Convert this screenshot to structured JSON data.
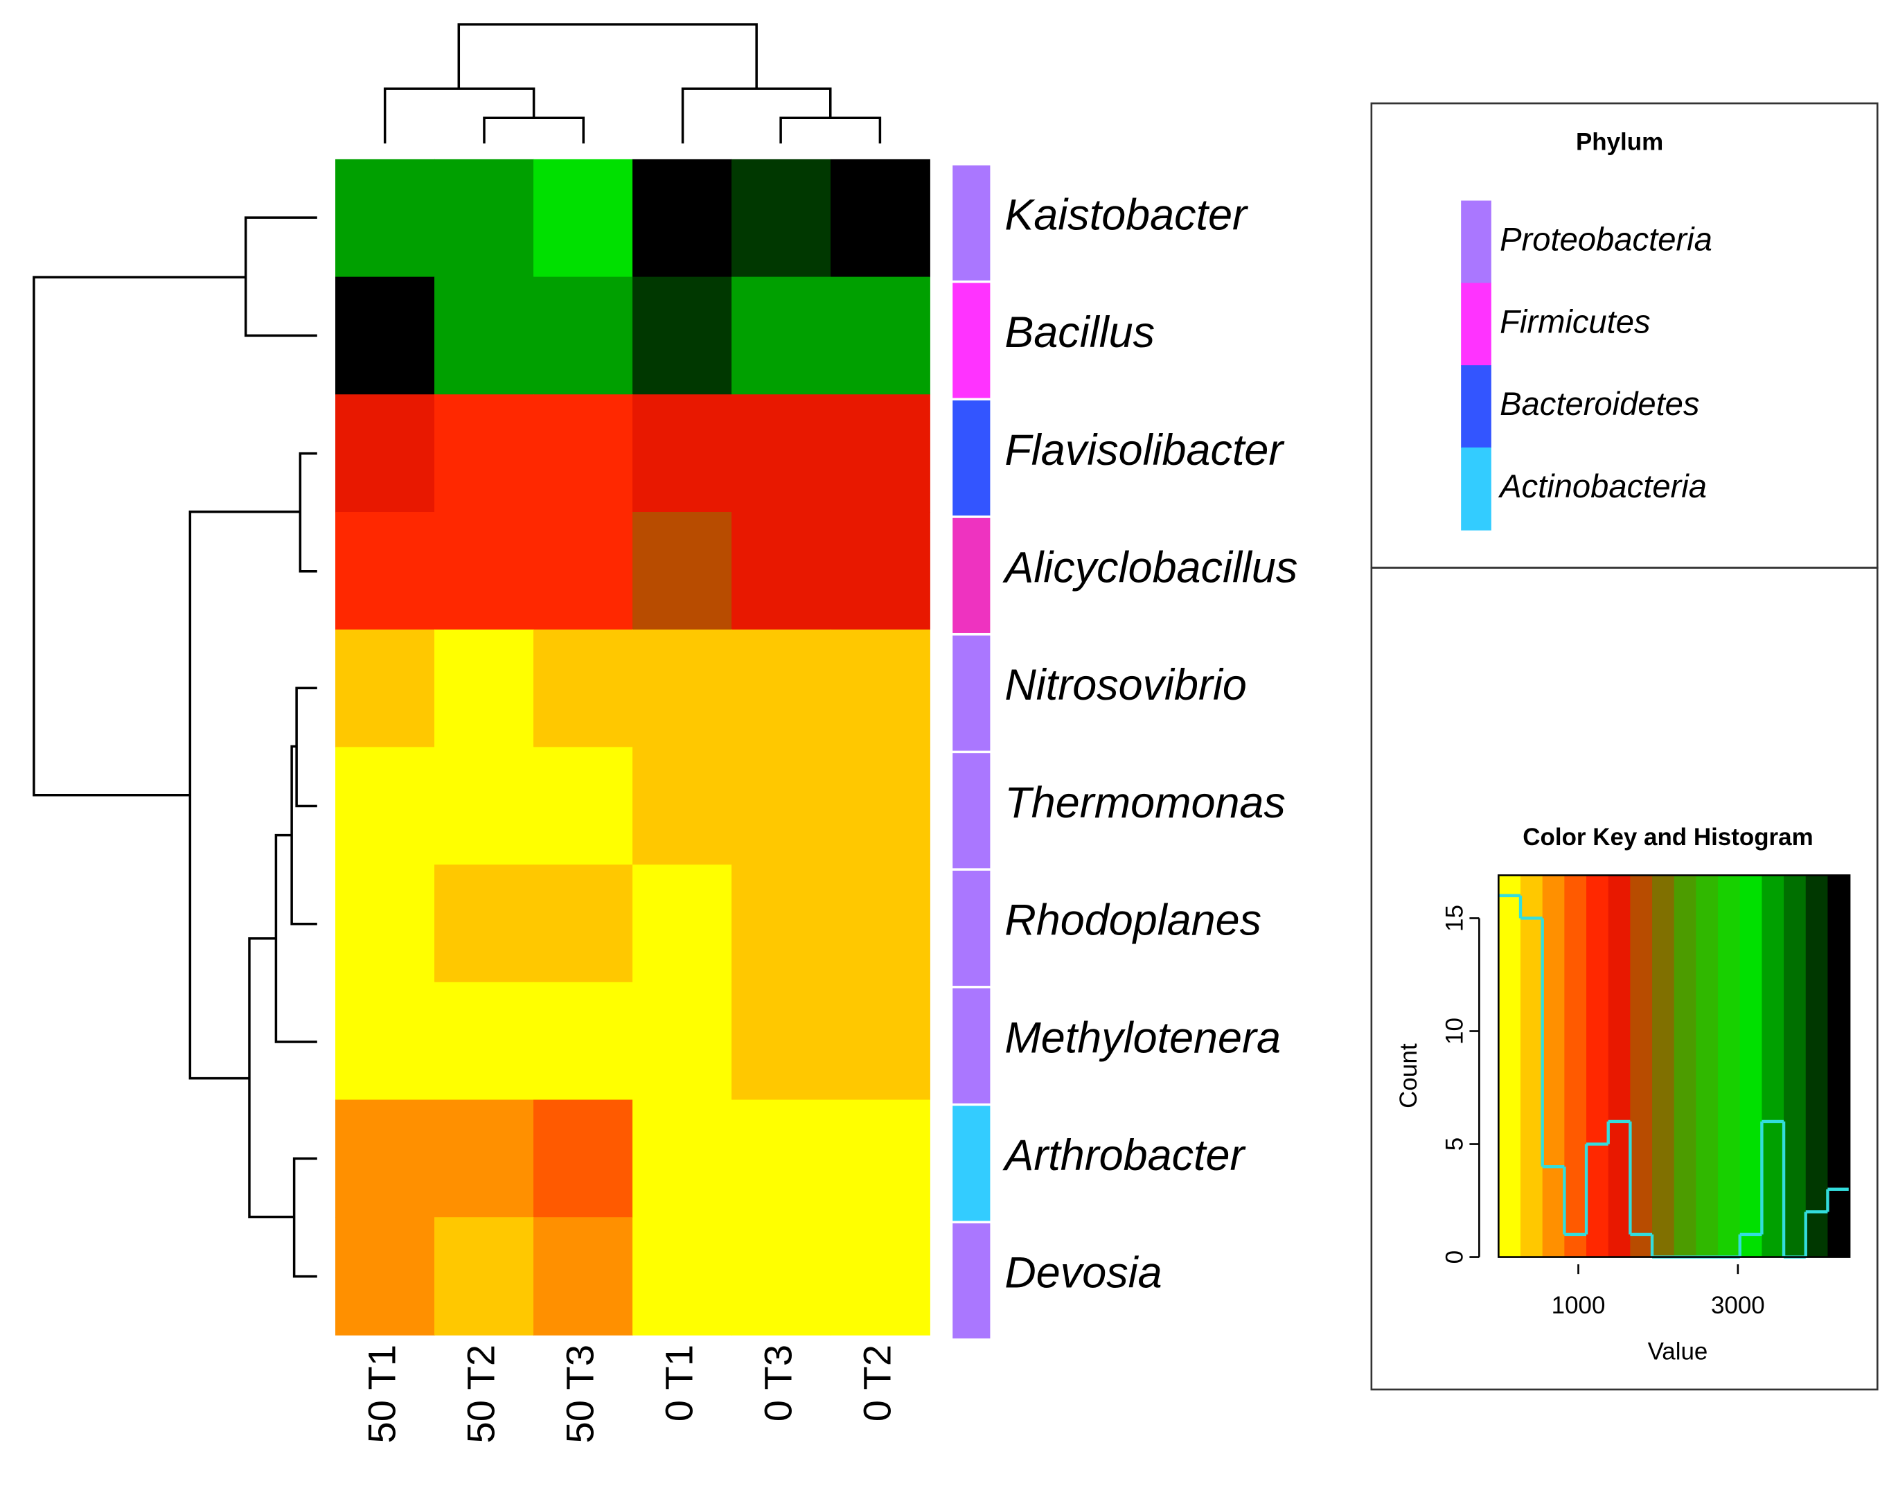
{
  "chart_data": {
    "type": "heatmap",
    "columns": [
      "50 T1",
      "50 T2",
      "50 T3",
      "0 T1",
      "0 T3",
      "0 T2"
    ],
    "rows": [
      "Kaistobacter",
      "Bacillus",
      "Flavisolibacter",
      "Alicyclobacillus",
      "Nitrosovibrio",
      "Thermomonas",
      "Rhodoplanes",
      "Methylotenera",
      "Arthrobacter",
      "Devosia"
    ],
    "values": [
      [
        3440,
        3440,
        3165,
        4265,
        3990,
        4265
      ],
      [
        4265,
        3440,
        3440,
        3990,
        3440,
        3440
      ],
      [
        1515,
        1240,
        1240,
        1515,
        1515,
        1515
      ],
      [
        1240,
        1240,
        1240,
        1790,
        1515,
        1515
      ],
      [
        415,
        140,
        415,
        415,
        415,
        415
      ],
      [
        140,
        140,
        140,
        415,
        415,
        415
      ],
      [
        140,
        415,
        415,
        140,
        415,
        415
      ],
      [
        140,
        140,
        140,
        140,
        415,
        415
      ],
      [
        690,
        690,
        965,
        140,
        140,
        140
      ],
      [
        690,
        415,
        690,
        140,
        140,
        140
      ]
    ],
    "row_colors": [
      "#aa77ff",
      "#ff33ff",
      "#3355ff",
      "#ee33c0",
      "#aa77ff",
      "#aa77ff",
      "#aa77ff",
      "#aa77ff",
      "#33ccff",
      "#aa77ff"
    ],
    "legend": {
      "title": "Phylum",
      "items": [
        {
          "name": "Proteobacteria",
          "color": "#aa77ff"
        },
        {
          "name": "Firmicutes",
          "color": "#ff33ff"
        },
        {
          "name": "Bacteroidetes",
          "color": "#3355ff"
        },
        {
          "name": "Actinobacteria",
          "color": "#33ccff"
        }
      ]
    },
    "color_key": {
      "title": "Color Key and Histogram",
      "xlabel": "Value",
      "ylabel": "Count",
      "breaks": [
        0,
        275,
        550,
        825,
        1100,
        1375,
        1650,
        1925,
        2200,
        2475,
        2750,
        3025,
        3300,
        3575,
        3850,
        4125,
        4400
      ],
      "colors": [
        "#ffff00",
        "#ffc800",
        "#ff9000",
        "#ff5a00",
        "#ff2800",
        "#e81800",
        "#b84c00",
        "#807000",
        "#4c9c00",
        "#30b800",
        "#18d000",
        "#00e000",
        "#00a000",
        "#007000",
        "#003800",
        "#000000"
      ],
      "counts": [
        16,
        15,
        4,
        1,
        5,
        6,
        1,
        0,
        0,
        0,
        0,
        1,
        6,
        0,
        2,
        3
      ],
      "hist_color": "#33dddd",
      "xlim": [
        0,
        4400
      ],
      "xticks": [
        1000,
        3000
      ],
      "ylim": [
        0,
        16.9
      ],
      "yticks": [
        0,
        5,
        10,
        15
      ]
    }
  }
}
